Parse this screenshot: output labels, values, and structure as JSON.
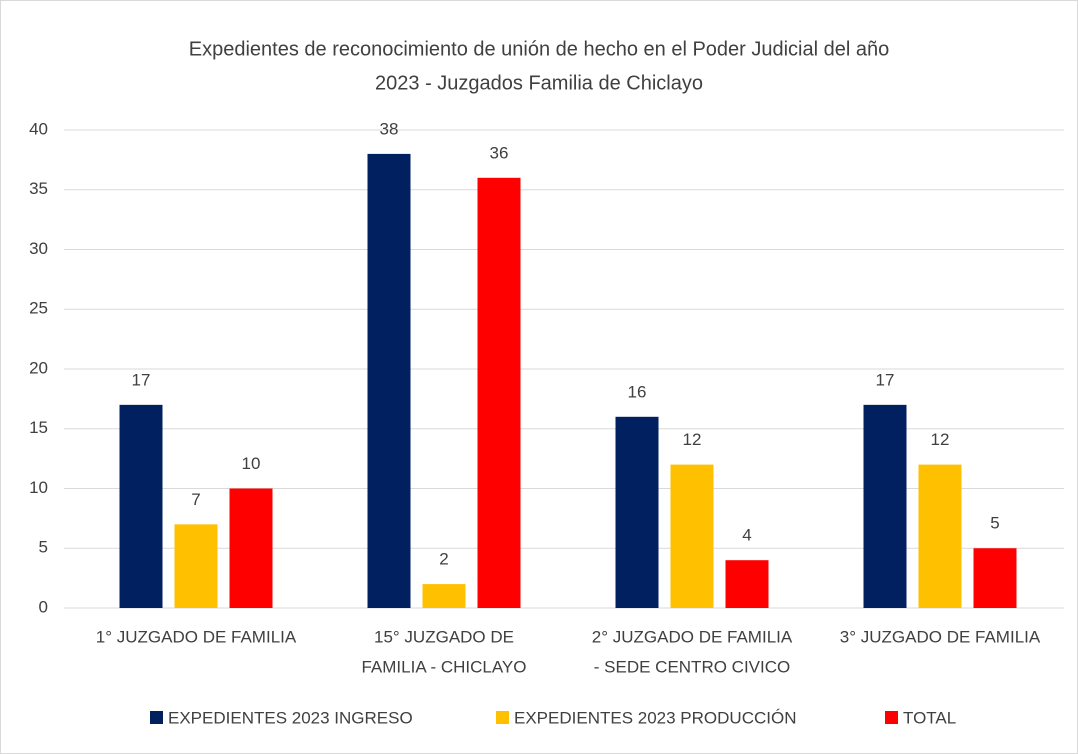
{
  "chart_data": {
    "type": "bar",
    "title": [
      "Expedientes de reconocimiento de unión de hecho en el Poder Judicial del año",
      "2023 - Juzgados Familia de Chiclayo"
    ],
    "categories": [
      [
        "1° JUZGADO DE FAMILIA"
      ],
      [
        "15° JUZGADO DE",
        "FAMILIA - CHICLAYO"
      ],
      [
        "2° JUZGADO DE FAMILIA",
        "- SEDE CENTRO CIVICO"
      ],
      [
        "3° JUZGADO DE FAMILIA"
      ]
    ],
    "series": [
      {
        "name": "EXPEDIENTES 2023 INGRESO",
        "color": "#002060",
        "values": [
          17,
          38,
          16,
          17
        ]
      },
      {
        "name": "EXPEDIENTES 2023 PRODUCCIÓN",
        "color": "#FFC000",
        "values": [
          7,
          2,
          12,
          12
        ]
      },
      {
        "name": "TOTAL",
        "color": "#FF0000",
        "values": [
          10,
          36,
          4,
          5
        ]
      }
    ],
    "ylim": [
      0,
      40
    ],
    "yticks": [
      0,
      5,
      10,
      15,
      20,
      25,
      30,
      35,
      40
    ],
    "grid": true,
    "legend": "bottom"
  }
}
